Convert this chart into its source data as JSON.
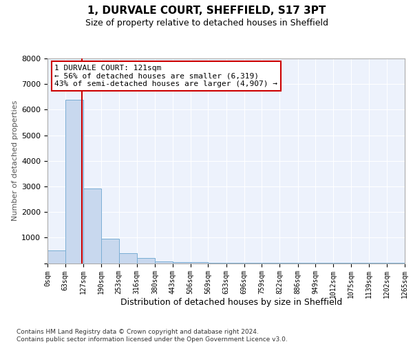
{
  "title": "1, DURVALE COURT, SHEFFIELD, S17 3PT",
  "subtitle": "Size of property relative to detached houses in Sheffield",
  "xlabel": "Distribution of detached houses by size in Sheffield",
  "ylabel": "Number of detached properties",
  "bar_color": "#c8d8ee",
  "bar_edge_color": "#7aaed4",
  "bin_edges": [
    0,
    63,
    127,
    190,
    253,
    316,
    380,
    443,
    506,
    569,
    633,
    696,
    759,
    822,
    886,
    949,
    1012,
    1075,
    1139,
    1202,
    1265
  ],
  "bar_heights": [
    500,
    6400,
    2920,
    960,
    380,
    200,
    80,
    50,
    30,
    20,
    12,
    8,
    6,
    5,
    4,
    3,
    2,
    2,
    1,
    1
  ],
  "property_size": 121,
  "red_line_color": "#cc0000",
  "annotation_line1": "1 DURVALE COURT: 121sqm",
  "annotation_line2": "← 56% of detached houses are smaller (6,319)",
  "annotation_line3": "43% of semi-detached houses are larger (4,907) →",
  "annotation_box_color": "#ffffff",
  "annotation_box_edge": "#cc0000",
  "ylim": [
    0,
    8000
  ],
  "yticks": [
    0,
    1000,
    2000,
    3000,
    4000,
    5000,
    6000,
    7000,
    8000
  ],
  "background_color": "#edf2fc",
  "grid_color": "#ffffff",
  "footer_line1": "Contains HM Land Registry data © Crown copyright and database right 2024.",
  "footer_line2": "Contains public sector information licensed under the Open Government Licence v3.0."
}
